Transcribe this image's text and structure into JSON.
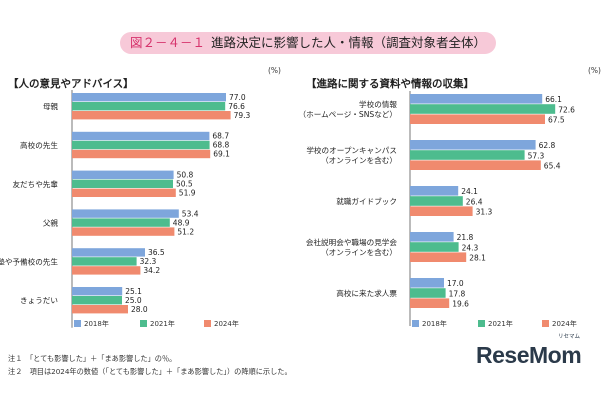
{
  "title": {
    "figure": "図２－４－１",
    "text": "進路決定に影響した人・情報（調査対象者全体）"
  },
  "unit": "(%)",
  "colors": {
    "s2018": "#7ea6dc",
    "s2021": "#4dbc8e",
    "s2024": "#f08a6e"
  },
  "chart_data": [
    {
      "type": "bar",
      "title": "【人の意見やアドバイス】",
      "orientation": "horizontal",
      "xlim": [
        0,
        100
      ],
      "categories": [
        [
          "母親"
        ],
        [
          "高校の先生"
        ],
        [
          "友だちや先輩"
        ],
        [
          "父親"
        ],
        [
          "塾や予備校の先生"
        ],
        [
          "きょうだい"
        ]
      ],
      "series": [
        {
          "name": "2018年",
          "values": [
            77.0,
            68.7,
            50.8,
            53.4,
            36.5,
            25.1
          ]
        },
        {
          "name": "2021年",
          "values": [
            76.6,
            68.8,
            50.5,
            48.9,
            32.3,
            25.0
          ]
        },
        {
          "name": "2024年",
          "values": [
            79.3,
            69.1,
            51.9,
            51.2,
            34.2,
            28.0
          ]
        }
      ],
      "labels": [
        [
          "77.0",
          "68.7",
          "50.8",
          "53.4",
          "36.5",
          "25.1"
        ],
        [
          "76.6",
          "68.8",
          "50.5",
          "48.9",
          "32.3",
          "25.0"
        ],
        [
          "79.3",
          "69.1",
          "51.9",
          "51.2",
          "34.2",
          "28.0"
        ]
      ]
    },
    {
      "type": "bar",
      "title": "【進路に関する資料や情報の収集】",
      "orientation": "horizontal",
      "xlim": [
        0,
        100
      ],
      "categories": [
        [
          "学校の情報",
          "（ホームページ・SNSなど）"
        ],
        [
          "学校のオープンキャンパス",
          "（オンラインを含む）"
        ],
        [
          "就職ガイドブック"
        ],
        [
          "会社説明会や職場の見学会",
          "（オンラインを含む）"
        ],
        [
          "高校に来た求人票"
        ]
      ],
      "series": [
        {
          "name": "2018年",
          "values": [
            66.1,
            62.8,
            24.1,
            21.8,
            17.0
          ]
        },
        {
          "name": "2021年",
          "values": [
            72.6,
            57.3,
            26.4,
            24.3,
            17.8
          ]
        },
        {
          "name": "2024年",
          "values": [
            67.5,
            65.4,
            31.3,
            28.1,
            19.6
          ]
        }
      ],
      "labels": [
        [
          "66.1",
          "62.8",
          "24.1",
          "21.8",
          "17.0"
        ],
        [
          "72.6",
          "57.3",
          "26.4",
          "24.3",
          "17.8"
        ],
        [
          "67.5",
          "65.4",
          "31.3",
          "28.1",
          "19.6"
        ]
      ]
    }
  ],
  "notes": [
    "注１　「とても影響した」＋「まあ影響した」の％。",
    "注２　項目は2024年の数値（「とても影響した」＋「まあ影響した」）の降順に示した。"
  ],
  "logo": {
    "text": "ReseMom",
    "kana": "リセマム"
  }
}
